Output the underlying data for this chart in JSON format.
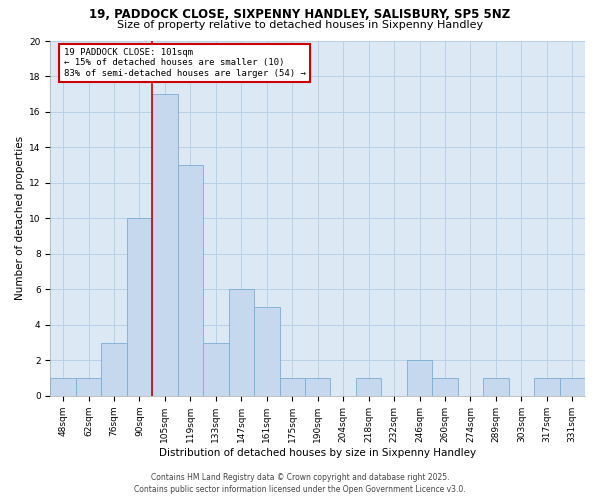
{
  "title_line1": "19, PADDOCK CLOSE, SIXPENNY HANDLEY, SALISBURY, SP5 5NZ",
  "title_line2": "Size of property relative to detached houses in Sixpenny Handley",
  "xlabel": "Distribution of detached houses by size in Sixpenny Handley",
  "ylabel": "Number of detached properties",
  "categories": [
    "48sqm",
    "62sqm",
    "76sqm",
    "90sqm",
    "105sqm",
    "119sqm",
    "133sqm",
    "147sqm",
    "161sqm",
    "175sqm",
    "190sqm",
    "204sqm",
    "218sqm",
    "232sqm",
    "246sqm",
    "260sqm",
    "274sqm",
    "289sqm",
    "303sqm",
    "317sqm",
    "331sqm"
  ],
  "values": [
    1,
    1,
    3,
    10,
    17,
    13,
    3,
    6,
    5,
    1,
    1,
    0,
    1,
    0,
    2,
    1,
    0,
    1,
    0,
    1,
    1
  ],
  "bar_color": "#c5d8ed",
  "bar_edge_color": "#7aadd4",
  "red_line_x": 3.5,
  "ylim": [
    0,
    20
  ],
  "yticks": [
    0,
    2,
    4,
    6,
    8,
    10,
    12,
    14,
    16,
    18,
    20
  ],
  "annotation_title": "19 PADDOCK CLOSE: 101sqm",
  "annotation_line1": "← 15% of detached houses are smaller (10)",
  "annotation_line2": "83% of semi-detached houses are larger (54) →",
  "footer_line1": "Contains HM Land Registry data © Crown copyright and database right 2025.",
  "footer_line2": "Contains public sector information licensed under the Open Government Licence v3.0.",
  "fig_bg_color": "#ffffff",
  "plot_bg_color": "#dce9f5",
  "grid_color": "#b8d0e8",
  "annotation_box_color": "#ffffff",
  "annotation_border_color": "#cc0000",
  "red_line_color": "#cc0000",
  "title_fontsize": 8.5,
  "subtitle_fontsize": 8.0,
  "tick_fontsize": 6.5,
  "ylabel_fontsize": 7.5,
  "xlabel_fontsize": 7.5,
  "footer_fontsize": 5.5,
  "annotation_fontsize": 6.5
}
